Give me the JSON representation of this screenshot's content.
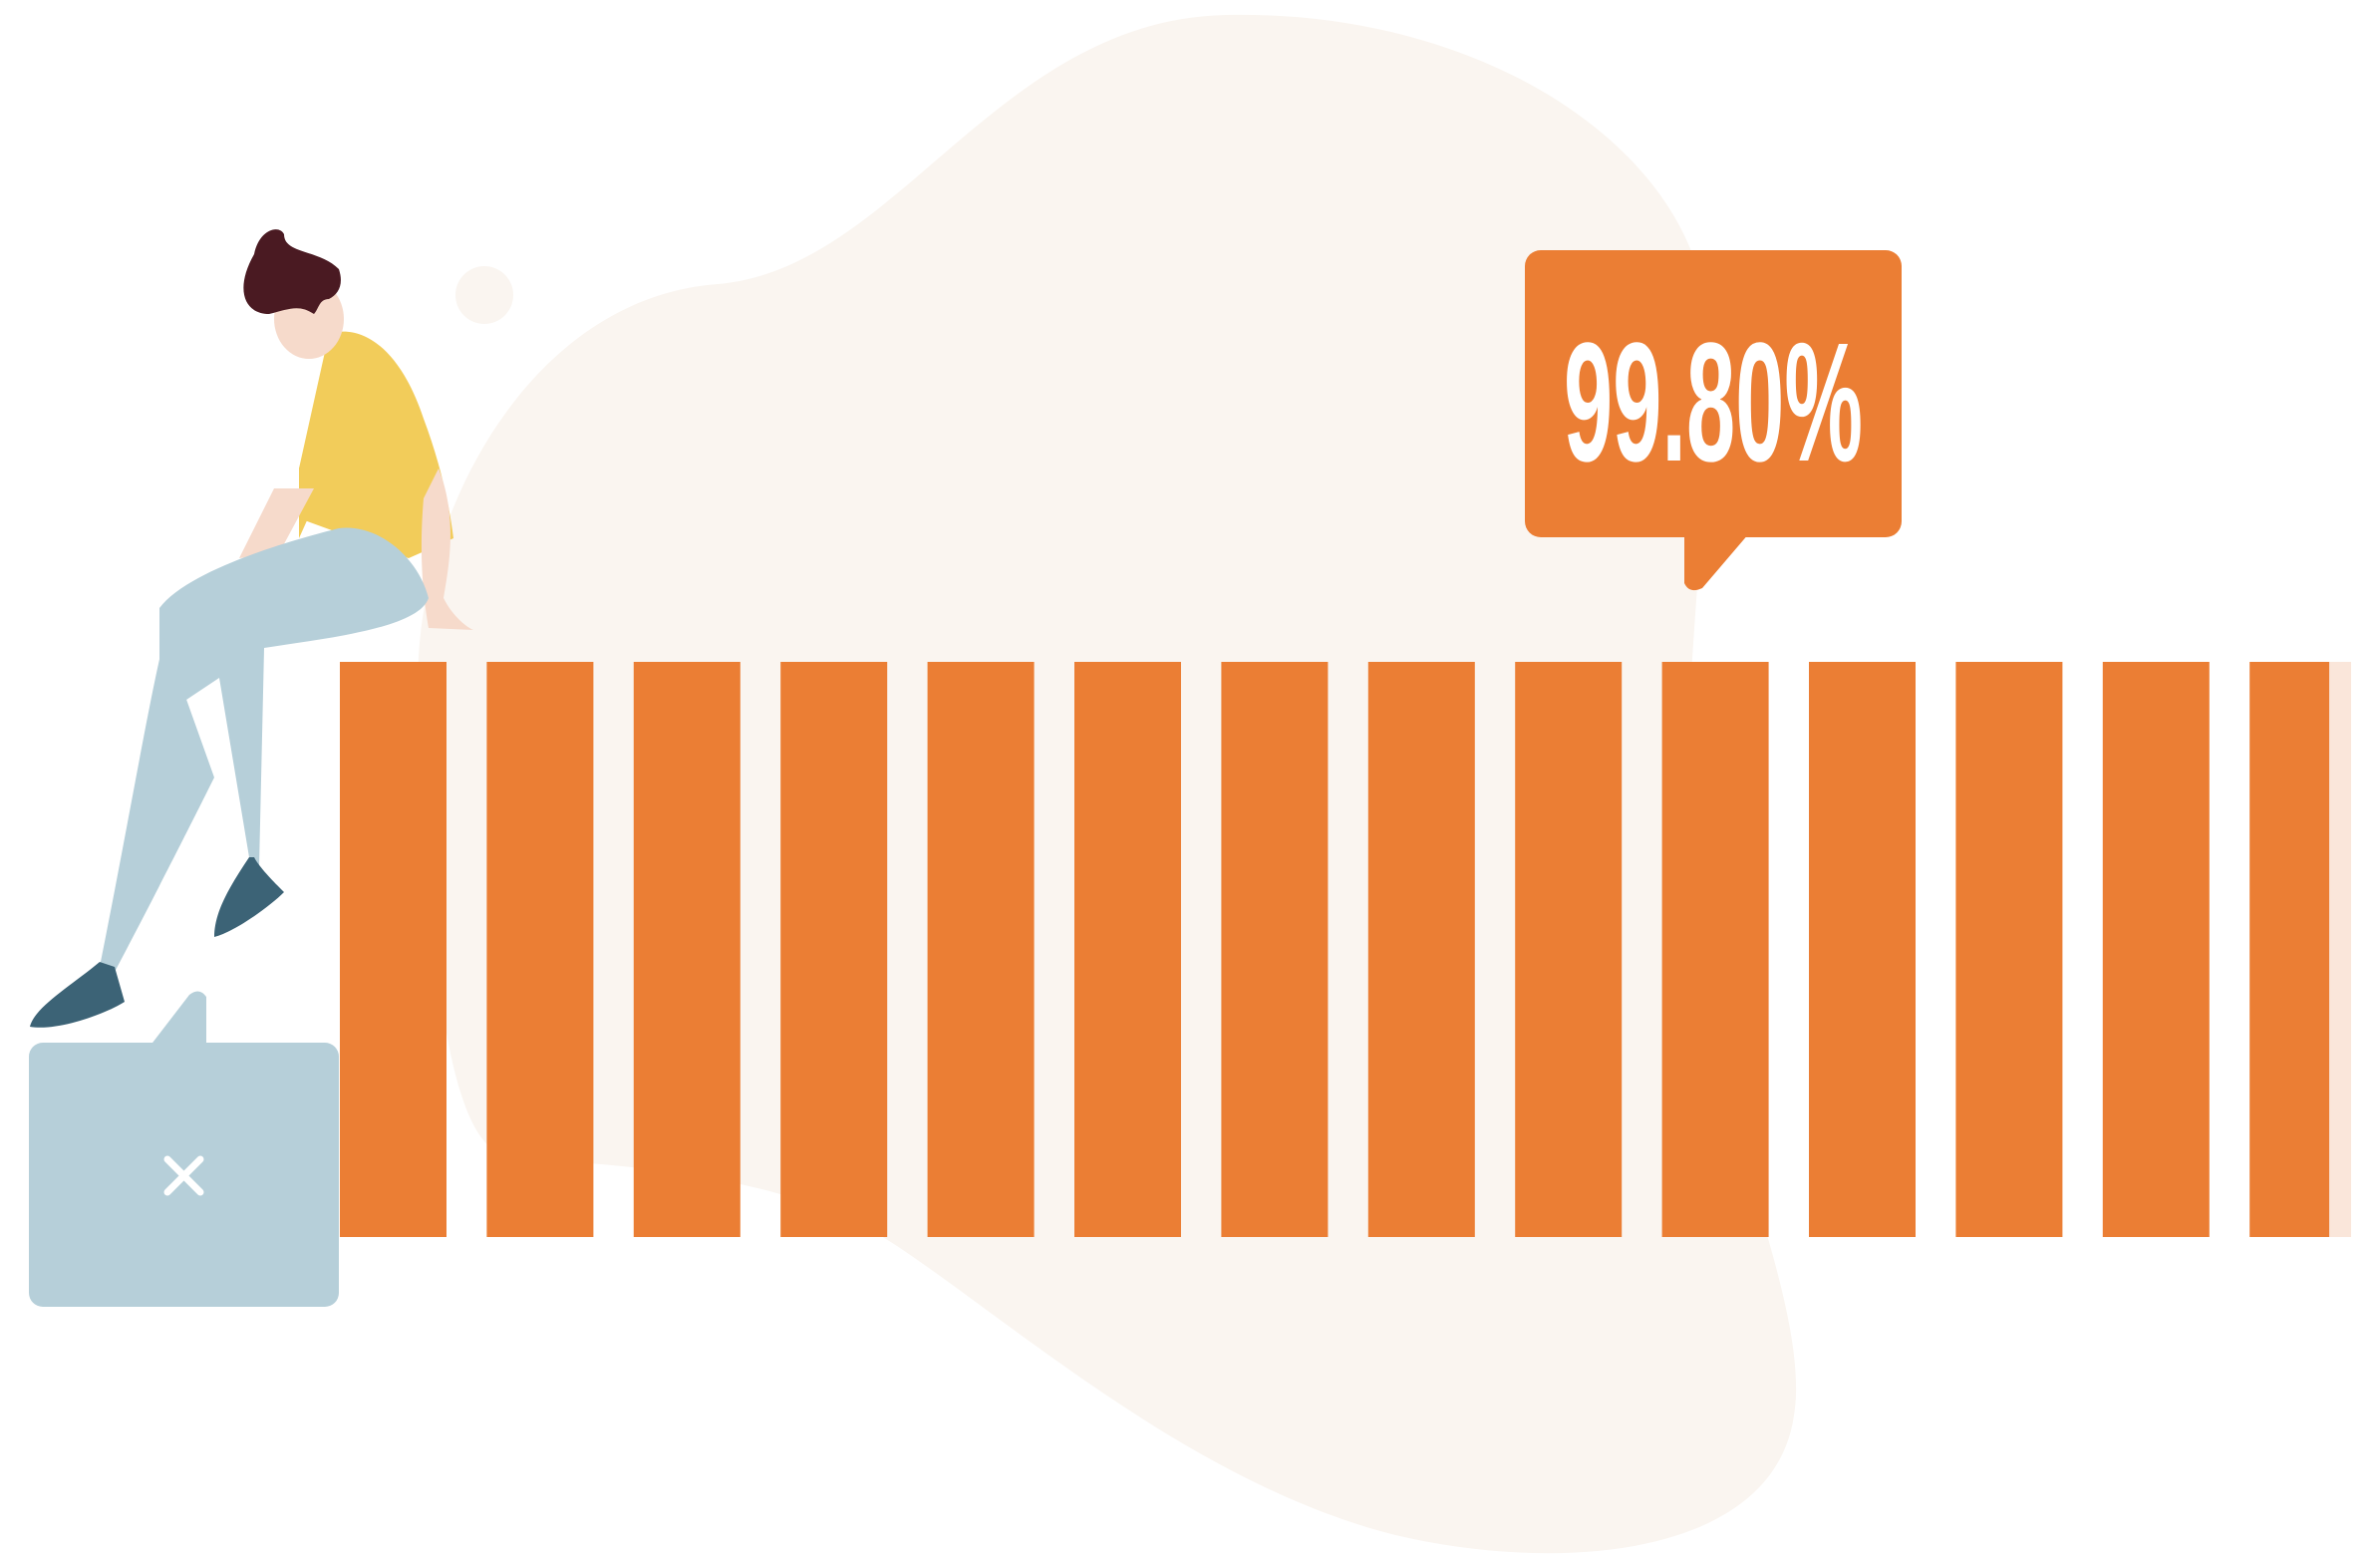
{
  "progress_label": "99.80%"
}
